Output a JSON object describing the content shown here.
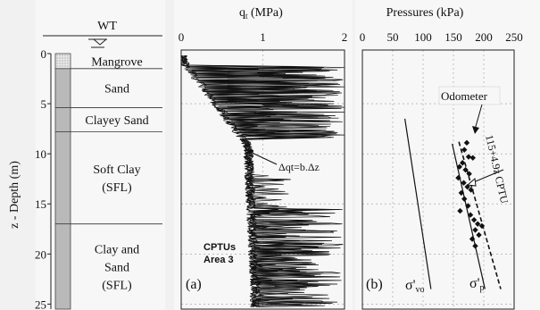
{
  "chart_data": [
    {
      "type": "strip-log",
      "title": "WT",
      "ylabel": "z - Depth (m)",
      "y_ticks": [
        0,
        5,
        10,
        15,
        20,
        25
      ],
      "ylim": [
        0,
        25.5
      ],
      "layers": [
        {
          "name": "Mangrove",
          "label_lines": [
            "Mangrove"
          ],
          "top": 0,
          "bottom": 1.5
        },
        {
          "name": "Sand",
          "label_lines": [
            "Sand"
          ],
          "top": 1.5,
          "bottom": 5.4
        },
        {
          "name": "Clayey Sand",
          "label_lines": [
            "Clayey Sand"
          ],
          "top": 5.4,
          "bottom": 7.8
        },
        {
          "name": "Soft Clay (SFL)",
          "label_lines": [
            "Soft Clay",
            "(SFL)"
          ],
          "top": 7.8,
          "bottom": 17.0
        },
        {
          "name": "Clay and Sand (SFL)",
          "label_lines": [
            "Clay and",
            "Sand",
            "(SFL)"
          ],
          "top": 17.0,
          "bottom": 25.5
        }
      ]
    },
    {
      "type": "line",
      "title": "qt (MPa)",
      "x_ticks": [
        0,
        1,
        2
      ],
      "xlim": [
        0,
        2
      ],
      "ylim": [
        0,
        25.5
      ],
      "panel_label": "(a)",
      "annotations": [
        "CPTUs",
        "Area 3",
        "Δqt=b.Δz"
      ],
      "grid": true,
      "trend": {
        "x": [
          0.02,
          0.82,
          0.92
        ],
        "z": [
          0.8,
          9.2,
          25.5
        ]
      }
    },
    {
      "type": "scatter",
      "title": "Pressures (kPa)",
      "x_ticks": [
        0,
        50,
        100,
        150,
        200,
        250
      ],
      "xlim": [
        0,
        250
      ],
      "ylim": [
        0,
        25.5
      ],
      "panel_label": "(b)",
      "grid": true,
      "series": [
        {
          "name": "Odometer",
          "points": [
            [
              172,
              8.9
            ],
            [
              168,
              9.6
            ],
            [
              175,
              10.3
            ],
            [
              165,
              10.9
            ],
            [
              182,
              10.4
            ],
            [
              160,
              11.3
            ],
            [
              170,
              11.6
            ],
            [
              176,
              12.0
            ],
            [
              158,
              12.4
            ],
            [
              167,
              12.9
            ],
            [
              173,
              13.3
            ],
            [
              163,
              13.9
            ],
            [
              179,
              13.6
            ],
            [
              168,
              14.5
            ],
            [
              174,
              15.2
            ],
            [
              161,
              15.7
            ],
            [
              178,
              16.1
            ],
            [
              184,
              16.6
            ],
            [
              190,
              17.0
            ],
            [
              197,
              17.2
            ],
            [
              186,
              17.6
            ],
            [
              192,
              18.1
            ],
            [
              181,
              18.5
            ],
            [
              186,
              19.2
            ]
          ]
        },
        {
          "name": "σ'vo",
          "x": [
            70,
            113
          ],
          "z": [
            6.5,
            23.5
          ]
        },
        {
          "name": "σ'p",
          "x": [
            148,
            202
          ],
          "z": [
            9.0,
            23.5
          ]
        },
        {
          "name": "115+4.9z CPTU",
          "x": [
            159,
            228
          ],
          "z": [
            8.8,
            23.5
          ]
        }
      ],
      "annotations": [
        "Odometer",
        "115+4.9z CPTU",
        "σ'vo",
        "σ'p"
      ]
    }
  ]
}
